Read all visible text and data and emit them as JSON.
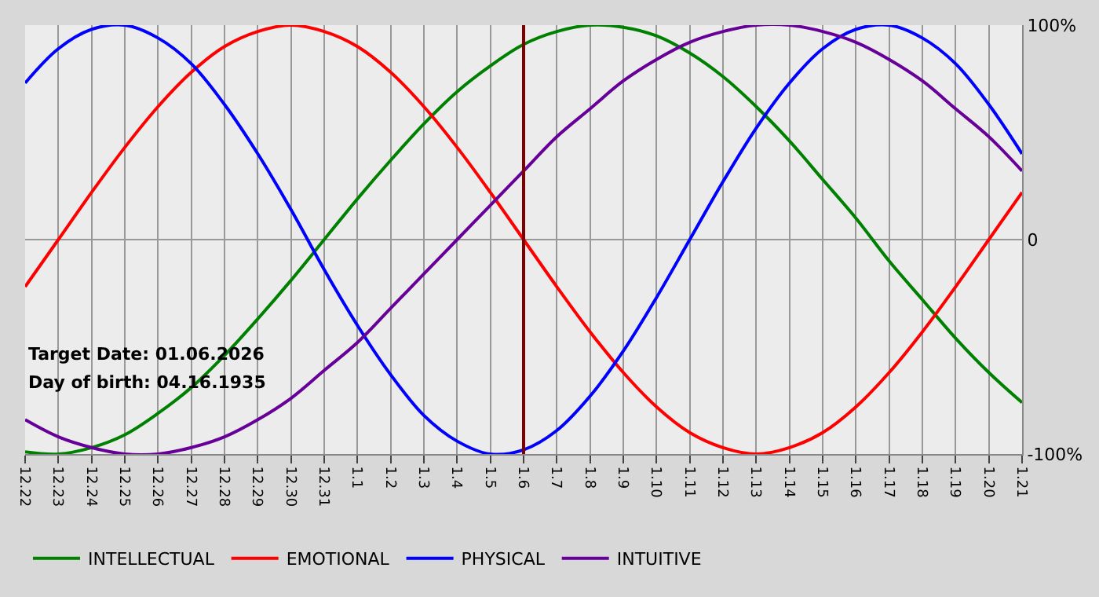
{
  "chart_data": {
    "type": "line",
    "categories": [
      "12.22",
      "12.23",
      "12.24",
      "12.25",
      "12.26",
      "12.27",
      "12.28",
      "12.29",
      "12.30",
      "12.31",
      "1.1",
      "1.2",
      "1.3",
      "1.4",
      "1.5",
      "1.6",
      "1.7",
      "1.8",
      "1.9",
      "1.10",
      "1.11",
      "1.12",
      "1.13",
      "1.14",
      "1.15",
      "1.16",
      "1.17",
      "1.18",
      "1.19",
      "1.20",
      "1.21"
    ],
    "series": [
      {
        "name": "INTELLECTUAL",
        "color": "#008000",
        "values": [
          -99,
          -100,
          -97,
          -91,
          -81,
          -69,
          -54,
          -37,
          -19,
          0,
          19,
          37,
          54,
          69,
          81,
          91,
          97,
          100,
          99,
          95,
          87,
          76,
          62,
          46,
          28,
          10,
          -10,
          -28,
          -46,
          -62,
          -76
        ]
      },
      {
        "name": "EMOTIONAL",
        "color": "#ff0000",
        "values": [
          -22,
          0,
          22,
          43,
          62,
          78,
          90,
          97,
          100,
          97,
          90,
          78,
          62,
          43,
          22,
          0,
          -22,
          -43,
          -62,
          -78,
          -90,
          -97,
          -100,
          -97,
          -90,
          -78,
          -62,
          -43,
          -22,
          0,
          22
        ]
      },
      {
        "name": "PHYSICAL",
        "color": "#0000ff",
        "values": [
          73,
          89,
          98,
          100,
          94,
          82,
          63,
          40,
          14,
          -14,
          -40,
          -63,
          -82,
          -94,
          -100,
          -98,
          -89,
          -73,
          -52,
          -27,
          0,
          27,
          52,
          73,
          89,
          98,
          100,
          94,
          82,
          63,
          40
        ]
      },
      {
        "name": "INTUITIVE",
        "color": "#660099",
        "values": [
          -84,
          -92,
          -97,
          -100,
          -100,
          -97,
          -92,
          -84,
          -74,
          -61,
          -48,
          -32,
          -16,
          0,
          16,
          32,
          48,
          61,
          74,
          84,
          92,
          97,
          100,
          100,
          97,
          92,
          84,
          74,
          61,
          48,
          32
        ]
      }
    ],
    "ylim": [
      -100,
      100
    ],
    "yticks": [
      {
        "value": 100,
        "label": "100%"
      },
      0,
      {
        "value": -100,
        "label": "-100%"
      }
    ],
    "ref_lines": [
      {
        "axis": "x",
        "value": "1.6",
        "color": "#800000"
      }
    ],
    "annotations": [
      "Target Date: 01.06.2026",
      "Day of birth: 04.16.1935"
    ],
    "grid": true,
    "legend": "bottom",
    "marker": "none",
    "line_style": "solid"
  }
}
